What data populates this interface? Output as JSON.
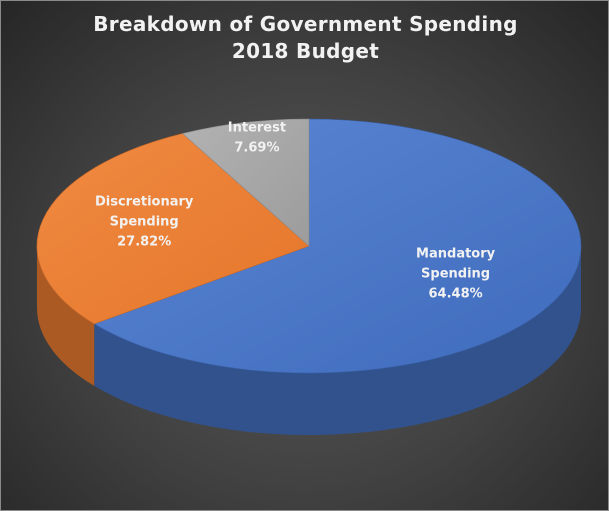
{
  "chart_data": {
    "type": "pie",
    "title": "Breakdown of Government Spending",
    "subtitle": "2018 Budget",
    "slices": [
      {
        "label_lines": [
          "Mandatory",
          "Spending"
        ],
        "value_label": "64.48%",
        "value": 64.48,
        "color": "#4472c4",
        "label_color": "#f2f2f2"
      },
      {
        "label_lines": [
          "Discretionary",
          "Spending"
        ],
        "value_label": "27.82%",
        "value": 27.82,
        "color": "#ed7d31",
        "label_color": "#f2f2f2"
      },
      {
        "label_lines": [
          "Interest"
        ],
        "value_label": "7.69%",
        "value": 7.69,
        "color": "#a5a5a5",
        "label_color": "#f2f2f2"
      }
    ],
    "style": "3d-pie",
    "legend": "none"
  }
}
